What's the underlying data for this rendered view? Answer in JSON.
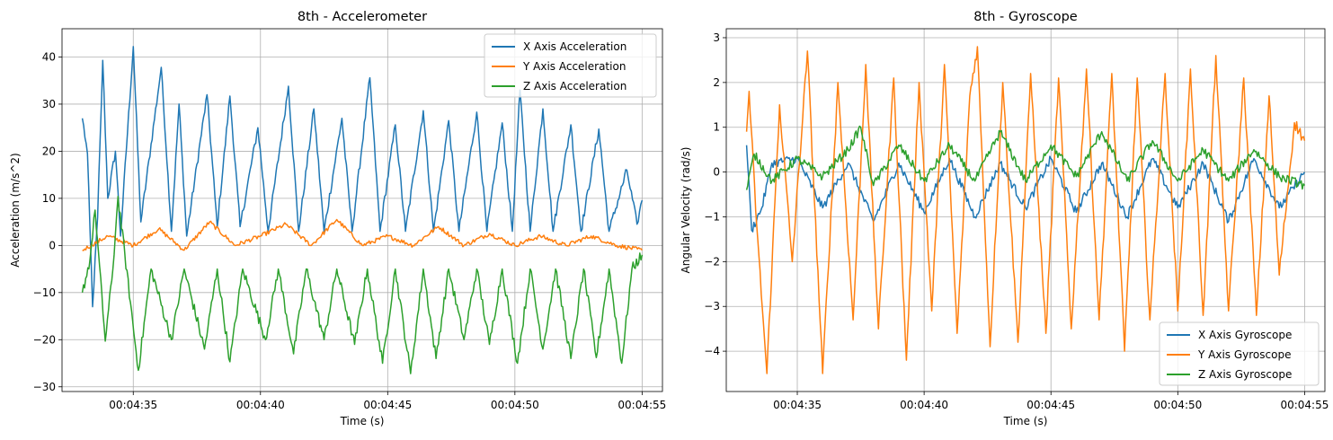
{
  "chart_data": [
    {
      "type": "line",
      "title": "8th - Accelerometer",
      "xlabel": "Time (s)",
      "ylabel": "Acceleration (m/s^2)",
      "x_range_seconds_of_clock": [
        "00:04:33",
        "00:04:55"
      ],
      "xlim": [
        "00:04:32.2",
        "00:04:55.8"
      ],
      "ylim": [
        -31,
        46
      ],
      "x_ticks": [
        "00:04:35",
        "00:04:40",
        "00:04:45",
        "00:04:50",
        "00:04:55"
      ],
      "y_ticks": [
        -30,
        -20,
        -10,
        0,
        10,
        20,
        30,
        40
      ],
      "grid": true,
      "legend_position": "top-right",
      "series": [
        {
          "name": "X Axis Acceleration",
          "color": "#1f77b4",
          "keypoints": [
            [
              "00:04:33.0",
              27
            ],
            [
              "00:04:33.2",
              19.5
            ],
            [
              "00:04:33.4",
              -13
            ],
            [
              "00:04:33.6",
              6
            ],
            [
              "00:04:33.8",
              39.3
            ],
            [
              "00:04:34.0",
              10
            ],
            [
              "00:04:34.3",
              20
            ],
            [
              "00:04:34.5",
              2
            ],
            [
              "00:04:35.0",
              42.2
            ],
            [
              "00:04:35.3",
              5
            ],
            [
              "00:04:36.1",
              37.8
            ],
            [
              "00:04:36.5",
              3
            ],
            [
              "00:04:36.8",
              30
            ],
            [
              "00:04:37.1",
              2
            ],
            [
              "00:04:37.9",
              32
            ],
            [
              "00:04:38.3",
              4
            ],
            [
              "00:04:38.8",
              31.7
            ],
            [
              "00:04:39.2",
              4
            ],
            [
              "00:04:39.9",
              25
            ],
            [
              "00:04:40.3",
              3
            ],
            [
              "00:04:41.1",
              33.8
            ],
            [
              "00:04:41.5",
              3
            ],
            [
              "00:04:42.1",
              29
            ],
            [
              "00:04:42.5",
              3
            ],
            [
              "00:04:43.2",
              27
            ],
            [
              "00:04:43.6",
              3
            ],
            [
              "00:04:44.3",
              35.6
            ],
            [
              "00:04:44.7",
              3
            ],
            [
              "00:04:45.3",
              25.6
            ],
            [
              "00:04:45.7",
              3
            ],
            [
              "00:04:46.4",
              28.6
            ],
            [
              "00:04:46.8",
              3
            ],
            [
              "00:04:47.4",
              26.5
            ],
            [
              "00:04:47.8",
              3
            ],
            [
              "00:04:48.5",
              28.3
            ],
            [
              "00:04:48.9",
              3
            ],
            [
              "00:04:49.5",
              26
            ],
            [
              "00:04:49.9",
              3
            ],
            [
              "00:04:50.2",
              33
            ],
            [
              "00:04:50.6",
              3
            ],
            [
              "00:04:51.1",
              29
            ],
            [
              "00:04:51.5",
              3
            ],
            [
              "00:04:52.2",
              25.6
            ],
            [
              "00:04:52.6",
              3
            ],
            [
              "00:04:53.3",
              24.7
            ],
            [
              "00:04:53.7",
              3
            ],
            [
              "00:04:54.4",
              16
            ],
            [
              "00:04:54.8",
              4.5
            ],
            [
              "00:04:55.0",
              9.6
            ]
          ]
        },
        {
          "name": "Y Axis Acceleration",
          "color": "#ff7f0e",
          "keypoints": [
            [
              "00:04:33.0",
              -1
            ],
            [
              "00:04:34.0",
              2
            ],
            [
              "00:04:35.0",
              0
            ],
            [
              "00:04:36.0",
              3.5
            ],
            [
              "00:04:37.0",
              -1
            ],
            [
              "00:04:38.0",
              5
            ],
            [
              "00:04:39.0",
              0
            ],
            [
              "00:04:40.0",
              2
            ],
            [
              "00:04:41.0",
              4.5
            ],
            [
              "00:04:42.0",
              0
            ],
            [
              "00:04:43.0",
              5.5
            ],
            [
              "00:04:44.0",
              0
            ],
            [
              "00:04:45.0",
              2
            ],
            [
              "00:04:46.0",
              0
            ],
            [
              "00:04:47.0",
              4
            ],
            [
              "00:04:48.0",
              0
            ],
            [
              "00:04:49.0",
              2.5
            ],
            [
              "00:04:50.0",
              0
            ],
            [
              "00:04:51.0",
              2
            ],
            [
              "00:04:52.0",
              0
            ],
            [
              "00:04:53.0",
              2
            ],
            [
              "00:04:54.0",
              0
            ],
            [
              "00:04:55.0",
              -1
            ]
          ]
        },
        {
          "name": "Z Axis Acceleration",
          "color": "#2ca02c",
          "keypoints": [
            [
              "00:04:33.0",
              -10
            ],
            [
              "00:04:33.3",
              -3
            ],
            [
              "00:04:33.5",
              7.5
            ],
            [
              "00:04:33.9",
              -20.3
            ],
            [
              "00:04:34.2",
              -5
            ],
            [
              "00:04:34.4",
              10.4
            ],
            [
              "00:04:35.2",
              -26.5
            ],
            [
              "00:04:35.7",
              -5
            ],
            [
              "00:04:36.5",
              -20
            ],
            [
              "00:04:37.0",
              -5
            ],
            [
              "00:04:37.8",
              -22
            ],
            [
              "00:04:38.3",
              -5
            ],
            [
              "00:04:38.8",
              -24.7
            ],
            [
              "00:04:39.3",
              -5
            ],
            [
              "00:04:40.2",
              -20
            ],
            [
              "00:04:40.7",
              -5
            ],
            [
              "00:04:41.3",
              -23
            ],
            [
              "00:04:41.8",
              -5
            ],
            [
              "00:04:42.5",
              -20
            ],
            [
              "00:04:43.0",
              -5
            ],
            [
              "00:04:43.7",
              -21
            ],
            [
              "00:04:44.2",
              -5
            ],
            [
              "00:04:44.8",
              -25
            ],
            [
              "00:04:45.3",
              -5
            ],
            [
              "00:04:45.9",
              -27.2
            ],
            [
              "00:04:46.4",
              -5
            ],
            [
              "00:04:46.9",
              -24
            ],
            [
              "00:04:47.4",
              -5
            ],
            [
              "00:04:48.0",
              -20
            ],
            [
              "00:04:48.5",
              -5
            ],
            [
              "00:04:49.0",
              -21
            ],
            [
              "00:04:49.5",
              -5
            ],
            [
              "00:04:50.1",
              -25
            ],
            [
              "00:04:50.6",
              -5
            ],
            [
              "00:04:51.1",
              -22
            ],
            [
              "00:04:51.6",
              -5
            ],
            [
              "00:04:52.2",
              -24
            ],
            [
              "00:04:52.7",
              -5
            ],
            [
              "00:04:53.2",
              -23.8
            ],
            [
              "00:04:53.7",
              -5
            ],
            [
              "00:04:54.2",
              -25
            ],
            [
              "00:04:54.6",
              -5
            ],
            [
              "00:04:55.0",
              -2
            ]
          ]
        }
      ]
    },
    {
      "type": "line",
      "title": "8th - Gyroscope",
      "xlabel": "Time (s)",
      "ylabel": "Angular Velocity (rad/s)",
      "xlim": [
        "00:04:32.2",
        "00:04:55.8"
      ],
      "ylim": [
        -4.9,
        3.2
      ],
      "x_ticks": [
        "00:04:35",
        "00:04:40",
        "00:04:45",
        "00:04:50",
        "00:04:55"
      ],
      "y_ticks": [
        -4,
        -3,
        -2,
        -1,
        0,
        1,
        2,
        3
      ],
      "grid": true,
      "legend_position": "bottom-right",
      "series": [
        {
          "name": "X Axis Gyroscope",
          "color": "#1f77b4",
          "keypoints": [
            [
              "00:04:33.0",
              0.6
            ],
            [
              "00:04:33.2",
              -1.3
            ],
            [
              "00:04:33.6",
              -0.8
            ],
            [
              "00:04:34.0",
              0.2
            ],
            [
              "00:04:35.0",
              0.3
            ],
            [
              "00:04:36.0",
              -0.8
            ],
            [
              "00:04:37.0",
              0.2
            ],
            [
              "00:04:38.0",
              -1.1
            ],
            [
              "00:04:39.0",
              0.2
            ],
            [
              "00:04:40.0",
              -0.9
            ],
            [
              "00:04:41.0",
              0.3
            ],
            [
              "00:04:42.0",
              -1.0
            ],
            [
              "00:04:43.0",
              0.2
            ],
            [
              "00:04:44.0",
              -0.8
            ],
            [
              "00:04:45.0",
              0.3
            ],
            [
              "00:04:46.0",
              -0.9
            ],
            [
              "00:04:47.0",
              0.2
            ],
            [
              "00:04:48.0",
              -1.0
            ],
            [
              "00:04:49.0",
              0.3
            ],
            [
              "00:04:50.0",
              -0.8
            ],
            [
              "00:04:51.0",
              0.2
            ],
            [
              "00:04:52.0",
              -1.1
            ],
            [
              "00:04:53.0",
              0.3
            ],
            [
              "00:04:54.0",
              -0.8
            ],
            [
              "00:04:55.0",
              0.0
            ]
          ]
        },
        {
          "name": "Y Axis Gyroscope",
          "color": "#ff7f0e",
          "keypoints": [
            [
              "00:04:33.0",
              0.9
            ],
            [
              "00:04:33.1",
              1.8
            ],
            [
              "00:04:33.4",
              -1.2
            ],
            [
              "00:04:33.8",
              -4.5
            ],
            [
              "00:04:34.3",
              1.5
            ],
            [
              "00:04:34.8",
              -2.0
            ],
            [
              "00:04:35.4",
              2.7
            ],
            [
              "00:04:36.0",
              -4.5
            ],
            [
              "00:04:36.6",
              2.0
            ],
            [
              "00:04:37.2",
              -3.3
            ],
            [
              "00:04:37.7",
              2.4
            ],
            [
              "00:04:38.2",
              -3.5
            ],
            [
              "00:04:38.8",
              2.1
            ],
            [
              "00:04:39.3",
              -4.2
            ],
            [
              "00:04:39.8",
              2.0
            ],
            [
              "00:04:40.3",
              -3.1
            ],
            [
              "00:04:40.8",
              2.4
            ],
            [
              "00:04:41.3",
              -3.6
            ],
            [
              "00:04:41.8",
              1.7
            ],
            [
              "00:04:42.1",
              2.8
            ],
            [
              "00:04:42.6",
              -3.9
            ],
            [
              "00:04:43.1",
              2.0
            ],
            [
              "00:04:43.7",
              -3.8
            ],
            [
              "00:04:44.2",
              2.2
            ],
            [
              "00:04:44.8",
              -3.6
            ],
            [
              "00:04:45.3",
              2.1
            ],
            [
              "00:04:45.8",
              -3.5
            ],
            [
              "00:04:46.4",
              2.3
            ],
            [
              "00:04:46.9",
              -3.3
            ],
            [
              "00:04:47.4",
              2.2
            ],
            [
              "00:04:47.9",
              -4.0
            ],
            [
              "00:04:48.4",
              2.1
            ],
            [
              "00:04:48.9",
              -3.3
            ],
            [
              "00:04:49.5",
              2.2
            ],
            [
              "00:04:50.0",
              -3.1
            ],
            [
              "00:04:50.5",
              2.3
            ],
            [
              "00:04:51.0",
              -3.2
            ],
            [
              "00:04:51.5",
              2.6
            ],
            [
              "00:04:52.0",
              -3.1
            ],
            [
              "00:04:52.6",
              2.1
            ],
            [
              "00:04:53.1",
              -3.2
            ],
            [
              "00:04:53.6",
              1.7
            ],
            [
              "00:04:54.0",
              -2.3
            ],
            [
              "00:04:54.6",
              1.1
            ],
            [
              "00:04:55.0",
              0.7
            ]
          ]
        },
        {
          "name": "Z Axis Gyroscope",
          "color": "#2ca02c",
          "keypoints": [
            [
              "00:04:33.0",
              -0.4
            ],
            [
              "00:04:33.3",
              0.4
            ],
            [
              "00:04:34.0",
              -0.2
            ],
            [
              "00:04:35.0",
              0.3
            ],
            [
              "00:04:36.0",
              -0.1
            ],
            [
              "00:04:37.0",
              0.5
            ],
            [
              "00:04:37.5",
              1.0
            ],
            [
              "00:04:38.0",
              -0.3
            ],
            [
              "00:04:39.0",
              0.6
            ],
            [
              "00:04:40.0",
              -0.2
            ],
            [
              "00:04:41.0",
              0.6
            ],
            [
              "00:04:42.0",
              -0.2
            ],
            [
              "00:04:43.0",
              0.9
            ],
            [
              "00:04:44.0",
              -0.2
            ],
            [
              "00:04:45.0",
              0.6
            ],
            [
              "00:04:46.0",
              -0.1
            ],
            [
              "00:04:47.0",
              0.9
            ],
            [
              "00:04:48.0",
              -0.2
            ],
            [
              "00:04:49.0",
              0.7
            ],
            [
              "00:04:50.0",
              -0.2
            ],
            [
              "00:04:51.0",
              0.5
            ],
            [
              "00:04:52.0",
              -0.2
            ],
            [
              "00:04:53.0",
              0.5
            ],
            [
              "00:04:54.0",
              -0.1
            ],
            [
              "00:04:55.0",
              -0.3
            ]
          ]
        }
      ]
    }
  ]
}
